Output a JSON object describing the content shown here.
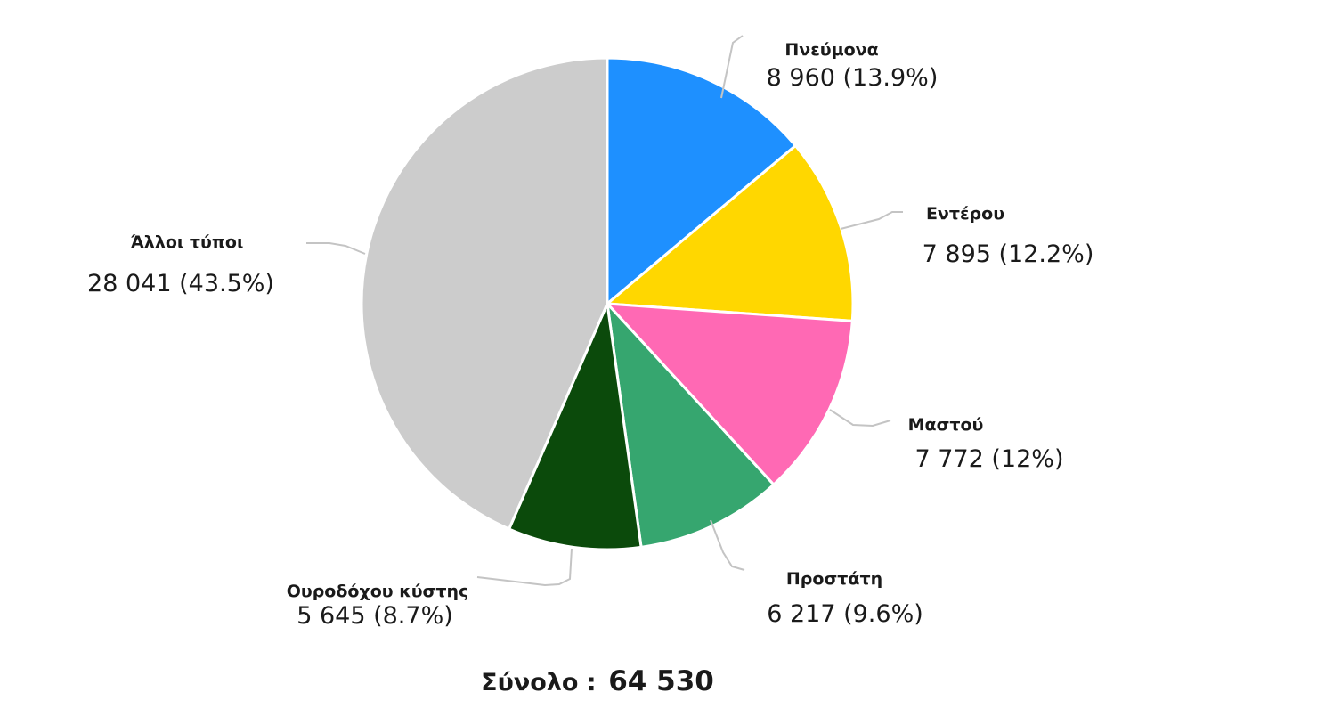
{
  "chart_data": {
    "type": "pie",
    "start_at": "top",
    "direction": "clockwise",
    "slices": [
      {
        "label": "Πνεύμονα",
        "value": 8960,
        "value_label": "8 960 (13.9%)",
        "percent": 13.9,
        "color": "#1E90FF",
        "leader": "up-right"
      },
      {
        "label": "Εντέρου",
        "value": 7895,
        "value_label": "7 895 (12.2%)",
        "percent": 12.2,
        "color": "#FFD700",
        "leader": "right"
      },
      {
        "label": "Μαστού",
        "value": 7772,
        "value_label": "7 772 (12%)",
        "percent": 12,
        "color": "#FF69B4",
        "leader": "down-right"
      },
      {
        "label": "Προστάτη",
        "value": 6217,
        "value_label": "6 217 (9.6%)",
        "percent": 9.6,
        "color": "#36A66F",
        "leader": "down-right"
      },
      {
        "label": "Ουροδόχου κύστης",
        "value": 5645,
        "value_label": "5 645 (8.7%)",
        "percent": 8.7,
        "color": "#0B4A0B",
        "leader": "down-left"
      },
      {
        "label": "Άλλοι τύποι",
        "value": 28041,
        "value_label": "28 041 (43.5%)",
        "percent": 43.5,
        "color": "#CCCCCC",
        "leader": "left"
      }
    ],
    "total_label": "Σύνολο :",
    "total_value": "64 530",
    "legend": "none"
  }
}
